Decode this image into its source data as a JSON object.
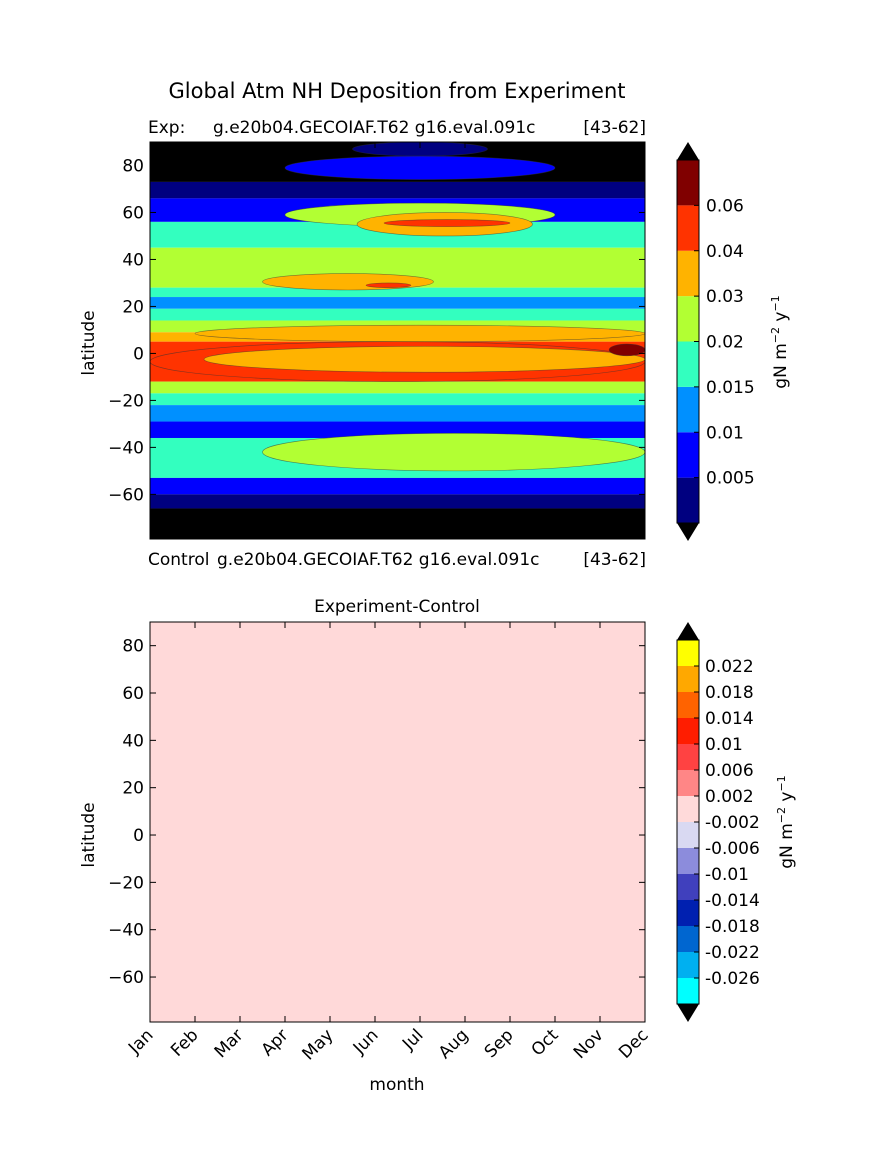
{
  "figure": {
    "title": "Global Atm NH Deposition from Experiment",
    "top_left_label": "Exp:",
    "top_case": "g.e20b04.GECOIAF.T62 g16.eval.091c",
    "top_years": "[43-62]",
    "control_label": "Control",
    "control_case": "g.e20b04.GECOIAF.T62 g16.eval.091c",
    "control_years": "[43-62]"
  },
  "chart_data": [
    {
      "type": "heatmap",
      "title": "",
      "xlabel": "",
      "ylabel": "latitude",
      "ylim": [
        -79,
        90
      ],
      "yticks": [
        80,
        60,
        40,
        20,
        0,
        -20,
        -40,
        -60
      ],
      "x_categories": [
        "Jan",
        "Feb",
        "Mar",
        "Apr",
        "May",
        "Jun",
        "Jul",
        "Aug",
        "Sep",
        "Oct",
        "Nov",
        "Dec"
      ],
      "x_tick_labels_visible": false,
      "colorbar": {
        "label": "gN m^-2 y^-1",
        "label_main": "gN m",
        "label_exp1": "−2",
        "label_mid": " y",
        "label_exp2": "−1",
        "levels": [
          0,
          0.005,
          0.01,
          0.015,
          0.02,
          0.03,
          0.04,
          0.06,
          0.07
        ],
        "tick_labels": [
          "0.005",
          "0.01",
          "0.015",
          "0.02",
          "0.03",
          "0.04",
          "0.06"
        ],
        "colors": [
          "#000080",
          "#0000ff",
          "#0090ff",
          "#33ffbf",
          "#b2ff33",
          "#ffb300",
          "#ff3300",
          "#800000"
        ],
        "extend_low": "#000000",
        "extend_high": "#000000"
      },
      "bands": [
        {
          "y0": 90,
          "y1": 73,
          "value": 0.0
        },
        {
          "y0": 73,
          "y1": 66,
          "value": 0.003
        },
        {
          "y0": 66,
          "y1": 56,
          "value": 0.007
        },
        {
          "y0": 56,
          "y1": 45,
          "value": 0.017
        },
        {
          "y0": 45,
          "y1": 28,
          "value": 0.025
        },
        {
          "y0": 28,
          "y1": 24,
          "value": 0.017
        },
        {
          "y0": 24,
          "y1": 19,
          "value": 0.012
        },
        {
          "y0": 19,
          "y1": 14,
          "value": 0.017
        },
        {
          "y0": 14,
          "y1": 9,
          "value": 0.025
        },
        {
          "y0": 9,
          "y1": 5,
          "value": 0.035
        },
        {
          "y0": 5,
          "y1": -12,
          "value": 0.05
        },
        {
          "y0": -12,
          "y1": -17,
          "value": 0.025
        },
        {
          "y0": -17,
          "y1": -22,
          "value": 0.017
        },
        {
          "y0": -22,
          "y1": -29,
          "value": 0.012
        },
        {
          "y0": -29,
          "y1": -36,
          "value": 0.007
        },
        {
          "y0": -36,
          "y1": -53,
          "value": 0.017
        },
        {
          "y0": -53,
          "y1": -60,
          "value": 0.007
        },
        {
          "y0": -60,
          "y1": -66,
          "value": 0.003
        },
        {
          "y0": -66,
          "y1": -79,
          "value": 0.0
        }
      ],
      "features": [
        {
          "month0": 4.5,
          "month1": 7.5,
          "lat0": 90,
          "lat1": 84,
          "value": 0.003
        },
        {
          "month0": 3.0,
          "month1": 9.0,
          "lat0": 84,
          "lat1": 74,
          "value": 0.007
        },
        {
          "month0": 3.0,
          "month1": 9.0,
          "lat0": 64,
          "lat1": 54,
          "value": 0.025
        },
        {
          "month0": 4.6,
          "month1": 8.5,
          "lat0": 60,
          "lat1": 50,
          "value": 0.035
        },
        {
          "month0": 5.2,
          "month1": 8.0,
          "lat0": 57,
          "lat1": 54,
          "value": 0.05
        },
        {
          "month0": 2.5,
          "month1": 6.3,
          "lat0": 34,
          "lat1": 27,
          "value": 0.035
        },
        {
          "month0": 4.8,
          "month1": 5.8,
          "lat0": 30,
          "lat1": 28,
          "value": 0.05
        },
        {
          "month0": 1.0,
          "month1": 11.0,
          "lat0": 12,
          "lat1": 5,
          "value": 0.035
        },
        {
          "month0": 0.0,
          "month1": 11.0,
          "lat0": 5,
          "lat1": -12,
          "value": 0.05
        },
        {
          "month0": 1.2,
          "month1": 11.0,
          "lat0": 3,
          "lat1": -8,
          "value": 0.035
        },
        {
          "month0": 10.2,
          "month1": 11.0,
          "lat0": 4,
          "lat1": -1,
          "value": 0.065
        },
        {
          "month0": 2.5,
          "month1": 11.0,
          "lat0": -34,
          "lat1": -50,
          "value": 0.025
        }
      ]
    },
    {
      "type": "heatmap",
      "title": "Experiment-Control",
      "xlabel": "month",
      "ylabel": "latitude",
      "ylim": [
        -79,
        90
      ],
      "yticks": [
        80,
        60,
        40,
        20,
        0,
        -20,
        -40,
        -60
      ],
      "x_categories": [
        "Jan",
        "Feb",
        "Mar",
        "Apr",
        "May",
        "Jun",
        "Jul",
        "Aug",
        "Sep",
        "Oct",
        "Nov",
        "Dec"
      ],
      "uniform_value": 0.0,
      "fill_color": "#ffd9d9",
      "colorbar": {
        "label": "gN m^-2 y^-1",
        "label_main": "gN m",
        "label_exp1": "−2",
        "label_mid": " y",
        "label_exp2": "−1",
        "tick_labels": [
          "0.022",
          "0.018",
          "0.014",
          "0.01",
          "0.006",
          "0.002",
          "-0.002",
          "-0.006",
          "-0.01",
          "-0.014",
          "-0.018",
          "-0.022",
          "-0.026"
        ],
        "colors_top_to_bottom": [
          "#ffff00",
          "#ffa800",
          "#ff6300",
          "#ff1d00",
          "#ff4242",
          "#ff8686",
          "#ffdada",
          "#d9d9f2",
          "#8c8cdc",
          "#4040bd",
          "#0020b0",
          "#0066d0",
          "#00b0f0",
          "#00ffff"
        ],
        "extend_low": "#000000",
        "extend_high": "#000000"
      }
    }
  ]
}
